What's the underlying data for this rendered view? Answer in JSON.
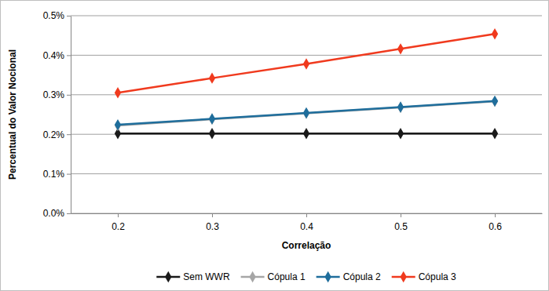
{
  "chart_data": {
    "type": "line",
    "x_label": "Correlação",
    "y_label": "Percentual do Valor Nocional",
    "categories": [
      "0.2",
      "0.3",
      "0.4",
      "0.5",
      "0.6"
    ],
    "series": [
      {
        "name": "Sem WWR",
        "color": "#1a1a1a",
        "values": [
          0.202,
          0.202,
          0.202,
          0.202,
          0.202
        ]
      },
      {
        "name": "Cópula 1",
        "color": "#a6a6a6",
        "values": [
          0.222,
          0.238,
          0.253,
          0.268,
          0.283
        ]
      },
      {
        "name": "Cópula 2",
        "color": "#1f6e9c",
        "values": [
          0.224,
          0.239,
          0.254,
          0.269,
          0.284
        ]
      },
      {
        "name": "Cópula 3",
        "color": "#f03a1e",
        "values": [
          0.305,
          0.342,
          0.378,
          0.416,
          0.454
        ]
      }
    ],
    "ylim": [
      0,
      0.5
    ],
    "yticks": [
      {
        "value": 0,
        "label": "0.0%"
      },
      {
        "value": 0.1,
        "label": "0.1%"
      },
      {
        "value": 0.2,
        "label": "0.2%"
      },
      {
        "value": 0.3,
        "label": "0.3%"
      },
      {
        "value": 0.4,
        "label": "0.4%"
      },
      {
        "value": 0.5,
        "label": "0.5%"
      }
    ],
    "grid": true,
    "legend": "bottom",
    "marker": "diamond"
  }
}
